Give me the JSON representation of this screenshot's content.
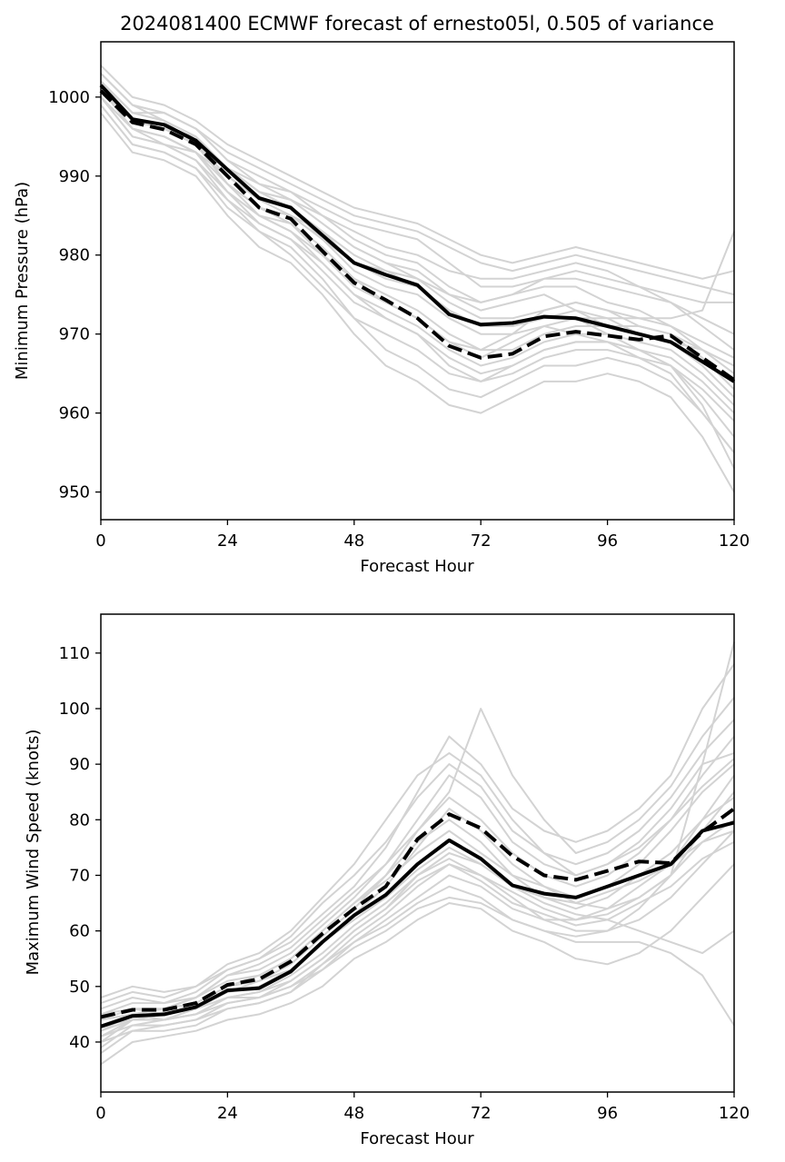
{
  "colors": {
    "ensemble": "#d3d3d3",
    "main": "#000000",
    "background": "#ffffff"
  },
  "chart_data": [
    {
      "type": "line",
      "title": "2024081400 ECMWF forecast of ernesto05l, 0.505 of variance",
      "xlabel": "Forecast Hour",
      "ylabel": "Minimum Pressure (hPa)",
      "xlim": [
        0,
        120
      ],
      "ylim": [
        946.5,
        1007
      ],
      "xticks": [
        0,
        24,
        48,
        72,
        96,
        120
      ],
      "yticks": [
        950,
        960,
        970,
        980,
        990,
        1000
      ],
      "x": [
        0,
        6,
        12,
        18,
        24,
        30,
        36,
        42,
        48,
        54,
        60,
        66,
        72,
        78,
        84,
        90,
        96,
        102,
        108,
        114,
        120
      ],
      "series": [
        {
          "style": "solid",
          "values": [
            1001.5,
            997.2,
            996.5,
            994.5,
            990.8,
            987.2,
            986.0,
            982.5,
            979.0,
            977.5,
            976.2,
            972.5,
            971.2,
            971.4,
            972.2,
            972.0,
            971.0,
            970.0,
            969.0,
            966.5,
            964.0
          ]
        },
        {
          "style": "dashed",
          "values": [
            1000.8,
            996.8,
            995.9,
            994.0,
            990.0,
            986.0,
            984.6,
            980.5,
            976.5,
            974.3,
            972.0,
            968.5,
            967.0,
            967.5,
            969.7,
            970.3,
            969.8,
            969.3,
            969.8,
            967.0,
            964.2
          ]
        }
      ],
      "ensemble": [
        [
          1003,
          999,
          997,
          995,
          991,
          988,
          987,
          984,
          981,
          979,
          978,
          975,
          973,
          974,
          975,
          973,
          971,
          971,
          970,
          968,
          966
        ],
        [
          1002,
          998,
          998,
          996,
          992,
          990,
          988,
          985,
          982,
          980,
          979,
          976,
          974,
          975,
          976,
          976,
          974,
          973,
          971,
          968,
          965
        ],
        [
          1001,
          996,
          995,
          993,
          988,
          985,
          984,
          980,
          976,
          974,
          972,
          969,
          967,
          969,
          971,
          972,
          972,
          970,
          969,
          966,
          962
        ],
        [
          1000,
          995,
          994,
          992,
          987,
          984,
          982,
          978,
          974,
          972,
          970,
          967,
          965,
          966,
          968,
          969,
          969,
          968,
          967,
          964,
          960
        ],
        [
          1002,
          998,
          997,
          995,
          991,
          989,
          987,
          985,
          983,
          981,
          980,
          978,
          977,
          977,
          978,
          979,
          978,
          976,
          974,
          971,
          968
        ],
        [
          999,
          994,
          993,
          991,
          986,
          983,
          981,
          977,
          972,
          968,
          966,
          963,
          962,
          964,
          966,
          966,
          967,
          966,
          964,
          960,
          955
        ],
        [
          1003,
          999,
          998,
          996,
          993,
          991,
          989,
          987,
          985,
          984,
          983,
          981,
          979,
          978,
          979,
          980,
          979,
          978,
          977,
          976,
          975
        ],
        [
          1001,
          997,
          996,
          994,
          989,
          986,
          985,
          982,
          978,
          976,
          975,
          972,
          970,
          970,
          971,
          970,
          969,
          967,
          965,
          960,
          955
        ],
        [
          1000,
          996,
          995,
          993,
          988,
          985,
          983,
          979,
          975,
          973,
          971,
          968,
          966,
          967,
          969,
          970,
          970,
          969,
          968,
          965,
          961
        ],
        [
          1002,
          997,
          996,
          994,
          990,
          987,
          986,
          983,
          980,
          978,
          977,
          974,
          972,
          972,
          973,
          974,
          973,
          972,
          971,
          969,
          967
        ],
        [
          1004,
          1000,
          999,
          997,
          994,
          992,
          990,
          988,
          986,
          985,
          984,
          982,
          980,
          979,
          980,
          981,
          980,
          979,
          978,
          977,
          978
        ],
        [
          998,
          993,
          992,
          990,
          985,
          981,
          979,
          975,
          970,
          966,
          964,
          961,
          960,
          962,
          964,
          964,
          965,
          964,
          962,
          957,
          950
        ],
        [
          1001,
          997,
          996,
          995,
          991,
          988,
          987,
          984,
          981,
          979,
          977,
          975,
          974,
          975,
          977,
          978,
          977,
          976,
          975,
          974,
          974
        ],
        [
          1000,
          995,
          994,
          992,
          988,
          984,
          982,
          979,
          975,
          972,
          970,
          966,
          964,
          965,
          967,
          968,
          968,
          967,
          966,
          963,
          959
        ],
        [
          1002,
          998,
          997,
          994,
          989,
          986,
          984,
          981,
          977,
          975,
          973,
          970,
          968,
          968,
          970,
          971,
          971,
          970,
          969,
          968,
          966
        ],
        [
          1003,
          999,
          998,
          996,
          992,
          989,
          988,
          986,
          984,
          983,
          982,
          979,
          976,
          976,
          977,
          977,
          976,
          975,
          974,
          972,
          970
        ],
        [
          999,
          994,
          993,
          991,
          987,
          983,
          980,
          976,
          972,
          970,
          968,
          965,
          964,
          966,
          968,
          969,
          969,
          968,
          966,
          962,
          957
        ],
        [
          1001,
          996,
          995,
          993,
          990,
          987,
          985,
          983,
          979,
          977,
          976,
          973,
          971,
          971,
          972,
          973,
          972,
          972,
          972,
          973,
          983
        ],
        [
          1000,
          996,
          994,
          993,
          989,
          985,
          983,
          980,
          977,
          974,
          972,
          969,
          968,
          970,
          973,
          974,
          973,
          971,
          970,
          967,
          963
        ],
        [
          1002,
          997,
          996,
          994,
          991,
          988,
          986,
          982,
          979,
          978,
          976,
          973,
          971,
          971,
          972,
          972,
          970,
          968,
          966,
          961,
          953
        ]
      ]
    },
    {
      "type": "line",
      "title": "",
      "xlabel": "Forecast Hour",
      "ylabel": "Maximum Wind Speed (knots)",
      "xlim": [
        0,
        120
      ],
      "ylim": [
        31,
        117
      ],
      "xticks": [
        0,
        24,
        48,
        72,
        96,
        120
      ],
      "yticks": [
        40,
        50,
        60,
        70,
        80,
        90,
        100,
        110
      ],
      "x": [
        0,
        6,
        12,
        18,
        24,
        30,
        36,
        42,
        48,
        54,
        60,
        66,
        72,
        78,
        84,
        90,
        96,
        102,
        108,
        114,
        120
      ],
      "series": [
        {
          "style": "solid",
          "values": [
            42.8,
            44.7,
            45.0,
            46.3,
            49.3,
            49.7,
            52.7,
            58.0,
            62.8,
            66.5,
            72.0,
            76.3,
            73.0,
            68.2,
            66.7,
            66.0,
            68.0,
            70.0,
            72.0,
            78.0,
            79.5
          ]
        },
        {
          "style": "dashed",
          "values": [
            44.5,
            45.8,
            45.8,
            47.0,
            50.3,
            51.3,
            54.5,
            59.5,
            64.0,
            68.0,
            76.5,
            81.0,
            78.5,
            73.5,
            70.0,
            69.2,
            70.8,
            72.5,
            72.2,
            77.8,
            82.0
          ]
        }
      ],
      "ensemble": [
        [
          40,
          44,
          45,
          46,
          49,
          50,
          53,
          58,
          63,
          68,
          75,
          82,
          78,
          72,
          68,
          65,
          64,
          66,
          70,
          78,
          85
        ],
        [
          44,
          46,
          46,
          48,
          52,
          53,
          56,
          61,
          66,
          72,
          80,
          88,
          84,
          76,
          72,
          70,
          72,
          75,
          80,
          88,
          95
        ],
        [
          38,
          42,
          43,
          44,
          46,
          47,
          49,
          54,
          59,
          63,
          68,
          72,
          70,
          66,
          62,
          60,
          60,
          62,
          66,
          72,
          78
        ],
        [
          46,
          48,
          47,
          49,
          53,
          55,
          58,
          63,
          68,
          75,
          85,
          95,
          90,
          82,
          78,
          76,
          78,
          82,
          88,
          100,
          108
        ],
        [
          42,
          45,
          44,
          45,
          48,
          48,
          51,
          55,
          60,
          64,
          70,
          74,
          72,
          68,
          65,
          63,
          62,
          60,
          58,
          56,
          60
        ],
        [
          48,
          50,
          49,
          50,
          54,
          56,
          60,
          66,
          72,
          80,
          88,
          92,
          88,
          80,
          74,
          70,
          72,
          76,
          82,
          90,
          92
        ],
        [
          36,
          40,
          41,
          42,
          44,
          45,
          47,
          50,
          55,
          58,
          62,
          65,
          64,
          60,
          58,
          55,
          54,
          56,
          60,
          66,
          72
        ],
        [
          45,
          46,
          45,
          47,
          50,
          51,
          54,
          59,
          64,
          70,
          78,
          85,
          100,
          88,
          80,
          74,
          76,
          80,
          86,
          95,
          102
        ],
        [
          41,
          43,
          44,
          45,
          47,
          48,
          50,
          54,
          58,
          62,
          66,
          70,
          68,
          64,
          62,
          62,
          64,
          68,
          72,
          80,
          88
        ],
        [
          43,
          45,
          46,
          47,
          50,
          52,
          55,
          60,
          65,
          70,
          76,
          80,
          76,
          70,
          66,
          64,
          66,
          70,
          74,
          80,
          84
        ],
        [
          39,
          43,
          43,
          44,
          47,
          48,
          50,
          53,
          57,
          60,
          64,
          66,
          65,
          62,
          60,
          58,
          58,
          58,
          56,
          52,
          43
        ],
        [
          47,
          49,
          48,
          50,
          53,
          55,
          59,
          65,
          70,
          76,
          84,
          90,
          86,
          78,
          74,
          72,
          74,
          78,
          84,
          92,
          98
        ],
        [
          42,
          44,
          44,
          46,
          48,
          49,
          52,
          56,
          61,
          65,
          70,
          73,
          70,
          67,
          64,
          62,
          63,
          66,
          70,
          76,
          80
        ],
        [
          44,
          45,
          46,
          48,
          51,
          52,
          55,
          60,
          65,
          69,
          74,
          78,
          74,
          70,
          68,
          66,
          68,
          72,
          78,
          85,
          90
        ],
        [
          40,
          42,
          42,
          43,
          46,
          47,
          49,
          53,
          58,
          61,
          65,
          68,
          66,
          62,
          60,
          59,
          60,
          64,
          70,
          90,
          112
        ],
        [
          45,
          47,
          47,
          48,
          52,
          54,
          57,
          62,
          67,
          72,
          78,
          84,
          80,
          74,
          70,
          68,
          70,
          74,
          80,
          86,
          91
        ],
        [
          43,
          44,
          45,
          46,
          49,
          51,
          53,
          58,
          62,
          66,
          71,
          75,
          72,
          68,
          66,
          65,
          67,
          69,
          72,
          76,
          78
        ],
        [
          41,
          44,
          44,
          45,
          48,
          49,
          51,
          55,
          60,
          64,
          69,
          72,
          69,
          65,
          63,
          61,
          62,
          65,
          68,
          73,
          76
        ]
      ]
    }
  ]
}
